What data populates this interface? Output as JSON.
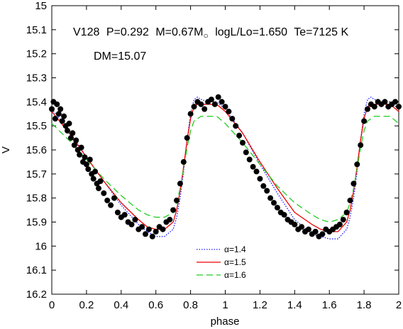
{
  "chart_data": {
    "type": "scatter",
    "annotations": {
      "line1": {
        "star": "V128",
        "period": "P=0.292",
        "mass": "M=0.67M",
        "mass_sub": "○",
        "luminosity": "logL/Lo=1.650",
        "teff": "Te=7125 K"
      },
      "line2": "DM=15.07"
    },
    "xlabel": "phase",
    "ylabel": "V",
    "xlim": [
      0,
      2
    ],
    "ylim": [
      15,
      16.2
    ],
    "y_inverted": true,
    "grid": false,
    "legend_position": "bottom-center",
    "x_ticks": [
      "0",
      "0.2",
      "0.4",
      "0.6",
      "0.8",
      "1",
      "1.2",
      "1.4",
      "1.6",
      "1.8",
      "2"
    ],
    "y_ticks": [
      "15",
      "15.1",
      "15.2",
      "15.3",
      "15.4",
      "15.5",
      "15.6",
      "15.7",
      "15.8",
      "15.9",
      "16",
      "16.1",
      "16.2"
    ],
    "observations": {
      "color": "#000000",
      "points": [
        [
          0.0,
          15.43
        ],
        [
          0.01,
          15.4
        ],
        [
          0.02,
          15.47
        ],
        [
          0.03,
          15.41
        ],
        [
          0.04,
          15.45
        ],
        [
          0.05,
          15.43
        ],
        [
          0.06,
          15.48
        ],
        [
          0.07,
          15.46
        ],
        [
          0.08,
          15.5
        ],
        [
          0.09,
          15.52
        ],
        [
          0.1,
          15.49
        ],
        [
          0.11,
          15.55
        ],
        [
          0.12,
          15.53
        ],
        [
          0.13,
          15.58
        ],
        [
          0.14,
          15.56
        ],
        [
          0.15,
          15.6
        ],
        [
          0.16,
          15.62
        ],
        [
          0.17,
          15.59
        ],
        [
          0.18,
          15.65
        ],
        [
          0.19,
          15.63
        ],
        [
          0.2,
          15.66
        ],
        [
          0.21,
          15.68
        ],
        [
          0.22,
          15.64
        ],
        [
          0.23,
          15.7
        ],
        [
          0.24,
          15.72
        ],
        [
          0.25,
          15.69
        ],
        [
          0.26,
          15.74
        ],
        [
          0.27,
          15.76
        ],
        [
          0.28,
          15.73
        ],
        [
          0.3,
          15.78
        ],
        [
          0.32,
          15.81
        ],
        [
          0.34,
          15.83
        ],
        [
          0.36,
          15.8
        ],
        [
          0.38,
          15.86
        ],
        [
          0.4,
          15.88
        ],
        [
          0.42,
          15.87
        ],
        [
          0.44,
          15.9
        ],
        [
          0.46,
          15.91
        ],
        [
          0.48,
          15.89
        ],
        [
          0.5,
          15.93
        ],
        [
          0.52,
          15.92
        ],
        [
          0.54,
          15.95
        ],
        [
          0.56,
          15.93
        ],
        [
          0.58,
          15.96
        ],
        [
          0.6,
          15.94
        ],
        [
          0.62,
          15.92
        ],
        [
          0.64,
          15.93
        ],
        [
          0.66,
          15.9
        ],
        [
          0.68,
          15.89
        ],
        [
          0.7,
          15.85
        ],
        [
          0.72,
          15.81
        ],
        [
          0.74,
          15.74
        ],
        [
          0.76,
          15.65
        ],
        [
          0.78,
          15.55
        ],
        [
          0.8,
          15.45
        ],
        [
          0.82,
          15.42
        ],
        [
          0.84,
          15.4
        ],
        [
          0.86,
          15.41
        ],
        [
          0.88,
          15.43
        ],
        [
          0.9,
          15.4
        ],
        [
          0.92,
          15.39
        ],
        [
          0.94,
          15.41
        ],
        [
          0.96,
          15.38
        ],
        [
          0.98,
          15.4
        ],
        [
          1.0,
          15.42
        ],
        [
          1.02,
          15.44
        ],
        [
          1.04,
          15.47
        ],
        [
          1.06,
          15.5
        ],
        [
          1.08,
          15.54
        ],
        [
          1.1,
          15.57
        ],
        [
          1.12,
          15.61
        ],
        [
          1.14,
          15.64
        ],
        [
          1.16,
          15.67
        ],
        [
          1.18,
          15.69
        ],
        [
          1.2,
          15.72
        ],
        [
          1.22,
          15.75
        ],
        [
          1.24,
          15.77
        ],
        [
          1.26,
          15.8
        ],
        [
          1.28,
          15.82
        ],
        [
          1.3,
          15.84
        ],
        [
          1.32,
          15.86
        ],
        [
          1.34,
          15.87
        ],
        [
          1.36,
          15.89
        ],
        [
          1.38,
          15.9
        ],
        [
          1.4,
          15.91
        ],
        [
          1.42,
          15.93
        ],
        [
          1.44,
          15.92
        ],
        [
          1.46,
          15.94
        ],
        [
          1.48,
          15.93
        ],
        [
          1.5,
          15.95
        ],
        [
          1.52,
          15.94
        ],
        [
          1.54,
          15.96
        ],
        [
          1.56,
          15.95
        ],
        [
          1.58,
          15.93
        ],
        [
          1.6,
          15.94
        ],
        [
          1.62,
          15.93
        ],
        [
          1.64,
          15.92
        ],
        [
          1.66,
          15.91
        ],
        [
          1.68,
          15.89
        ],
        [
          1.7,
          15.86
        ],
        [
          1.72,
          15.81
        ],
        [
          1.74,
          15.74
        ],
        [
          1.76,
          15.66
        ],
        [
          1.78,
          15.58
        ],
        [
          1.8,
          15.48
        ],
        [
          1.82,
          15.43
        ],
        [
          1.84,
          15.41
        ],
        [
          1.86,
          15.42
        ],
        [
          1.88,
          15.4
        ],
        [
          1.9,
          15.41
        ],
        [
          1.92,
          15.4
        ],
        [
          1.94,
          15.42
        ],
        [
          1.96,
          15.41
        ],
        [
          1.98,
          15.4
        ],
        [
          2.0,
          15.42
        ]
      ]
    },
    "series": [
      {
        "name": "α=1.4",
        "color": "#1a1aff",
        "style": "dotted",
        "x": [
          0,
          0.1,
          0.2,
          0.3,
          0.4,
          0.5,
          0.55,
          0.6,
          0.65,
          0.7,
          0.72,
          0.74,
          0.76,
          0.78,
          0.8,
          0.82,
          0.84,
          0.86,
          0.9,
          0.95,
          1,
          1.1,
          1.2,
          1.3,
          1.4,
          1.5,
          1.55,
          1.6,
          1.65,
          1.7,
          1.72,
          1.74,
          1.76,
          1.78,
          1.8,
          1.82,
          1.84,
          1.86,
          1.9,
          1.95,
          2
        ],
        "y": [
          15.43,
          15.52,
          15.63,
          15.73,
          15.83,
          15.91,
          15.94,
          15.96,
          15.96,
          15.93,
          15.88,
          15.8,
          15.69,
          15.56,
          15.45,
          15.39,
          15.38,
          15.39,
          15.4,
          15.4,
          15.43,
          15.53,
          15.66,
          15.78,
          15.89,
          15.95,
          15.96,
          15.97,
          15.97,
          15.93,
          15.88,
          15.8,
          15.69,
          15.56,
          15.45,
          15.39,
          15.38,
          15.39,
          15.4,
          15.4,
          15.43
        ]
      },
      {
        "name": "α=1.5",
        "color": "#ee0000",
        "style": "solid",
        "x": [
          0,
          0.1,
          0.2,
          0.3,
          0.4,
          0.5,
          0.55,
          0.6,
          0.65,
          0.7,
          0.72,
          0.74,
          0.76,
          0.78,
          0.8,
          0.82,
          0.84,
          0.86,
          0.9,
          0.95,
          1,
          1.1,
          1.2,
          1.3,
          1.4,
          1.5,
          1.55,
          1.6,
          1.65,
          1.7,
          1.72,
          1.74,
          1.76,
          1.78,
          1.8,
          1.82,
          1.84,
          1.86,
          1.9,
          1.95,
          2
        ],
        "y": [
          15.44,
          15.53,
          15.63,
          15.73,
          15.82,
          15.89,
          15.92,
          15.93,
          15.93,
          15.9,
          15.85,
          15.77,
          15.67,
          15.56,
          15.47,
          15.42,
          15.41,
          15.41,
          15.41,
          15.41,
          15.44,
          15.53,
          15.65,
          15.76,
          15.86,
          15.91,
          15.93,
          15.94,
          15.94,
          15.9,
          15.85,
          15.77,
          15.67,
          15.56,
          15.47,
          15.42,
          15.41,
          15.41,
          15.41,
          15.41,
          15.44
        ]
      },
      {
        "name": "α=1.6",
        "color": "#22cc22",
        "style": "dashed",
        "x": [
          0,
          0.1,
          0.2,
          0.3,
          0.4,
          0.5,
          0.55,
          0.6,
          0.65,
          0.7,
          0.72,
          0.74,
          0.76,
          0.78,
          0.8,
          0.82,
          0.84,
          0.86,
          0.9,
          0.95,
          1,
          1.1,
          1.2,
          1.3,
          1.4,
          1.5,
          1.55,
          1.6,
          1.65,
          1.7,
          1.72,
          1.74,
          1.76,
          1.78,
          1.8,
          1.82,
          1.84,
          1.86,
          1.9,
          1.95,
          2
        ],
        "y": [
          15.49,
          15.56,
          15.64,
          15.72,
          15.79,
          15.85,
          15.87,
          15.88,
          15.88,
          15.86,
          15.82,
          15.76,
          15.68,
          15.59,
          15.52,
          15.48,
          15.47,
          15.46,
          15.46,
          15.46,
          15.49,
          15.57,
          15.66,
          15.75,
          15.82,
          15.87,
          15.89,
          15.9,
          15.89,
          15.86,
          15.82,
          15.76,
          15.68,
          15.59,
          15.52,
          15.48,
          15.47,
          15.46,
          15.46,
          15.46,
          15.49
        ]
      }
    ]
  }
}
